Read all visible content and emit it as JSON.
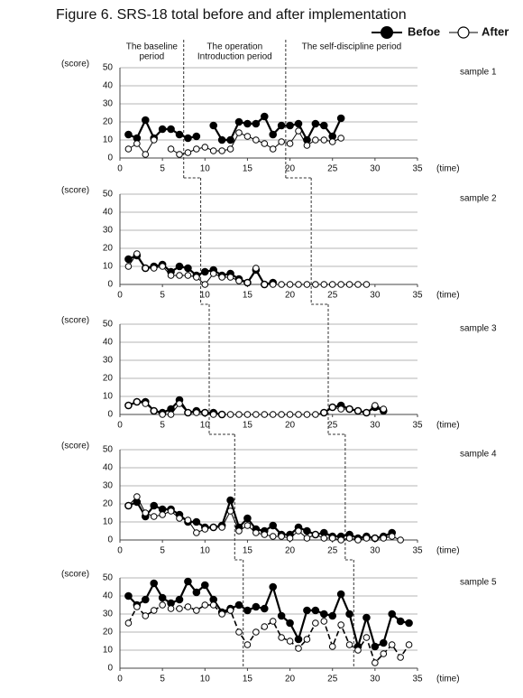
{
  "title": "Figure 6.    SRS-18 total before and after implementation",
  "legend": [
    "Befoe",
    "After"
  ],
  "chart_data": [
    {
      "type": "line",
      "label": "sample 1",
      "y_label": "(score)",
      "x_label": "(time)",
      "phase_labels": [
        [
          "The baseline",
          "period"
        ],
        [
          "The operation",
          "Introduction period"
        ],
        [
          "The self-discipline period"
        ]
      ],
      "phase_lines": [
        7.5,
        19.5
      ],
      "xlim": [
        0,
        35
      ],
      "ylim": [
        0,
        50
      ],
      "xticks": [
        0,
        5,
        10,
        15,
        20,
        25,
        30,
        35
      ],
      "yticks": [
        0,
        10,
        20,
        30,
        40,
        50
      ],
      "grid": true,
      "x": [
        1,
        2,
        3,
        4,
        5,
        6,
        7,
        8,
        9,
        10,
        11,
        12,
        13,
        14,
        15,
        16,
        17,
        18,
        19,
        20,
        21,
        22,
        23,
        24,
        25,
        26
      ],
      "series": [
        {
          "color": "#000000",
          "filled": true,
          "dashed": false,
          "values": [
            13,
            11,
            21,
            11,
            16,
            16,
            13,
            11,
            12,
            null,
            18,
            10,
            10,
            20,
            19,
            19,
            23,
            13,
            18,
            18,
            19,
            10,
            19,
            18,
            12,
            22
          ]
        },
        {
          "color": "#000000",
          "filled": false,
          "dashed": false,
          "values": [
            5,
            8,
            2,
            10,
            null,
            5,
            2,
            3,
            5,
            6,
            4,
            4,
            5,
            14,
            12,
            10,
            8,
            5,
            9,
            8,
            15,
            7,
            10,
            10,
            9,
            11
          ]
        }
      ]
    },
    {
      "type": "line",
      "label": "sample 2",
      "y_label": "(score)",
      "x_label": "(time)",
      "phase_lines": [
        9.5,
        22.5
      ],
      "xlim": [
        0,
        35
      ],
      "ylim": [
        0,
        50
      ],
      "xticks": [
        0,
        5,
        10,
        15,
        20,
        25,
        30,
        35
      ],
      "yticks": [
        0,
        10,
        20,
        30,
        40,
        50
      ],
      "grid": true,
      "x": [
        1,
        2,
        3,
        4,
        5,
        6,
        7,
        8,
        9,
        10,
        11,
        12,
        13,
        14,
        15,
        16,
        17,
        18,
        19,
        20,
        21,
        22,
        23,
        24,
        25,
        26,
        27,
        28,
        29
      ],
      "series": [
        {
          "color": "#000000",
          "filled": true,
          "dashed": false,
          "values": [
            14,
            16,
            9,
            10,
            11,
            7,
            10,
            9,
            5,
            7,
            8,
            5,
            6,
            3,
            1,
            8,
            0,
            1,
            null,
            null,
            null,
            null,
            null,
            null,
            null,
            null,
            null,
            null,
            null
          ]
        },
        {
          "color": "#000000",
          "filled": false,
          "dashed": false,
          "values": [
            10,
            17,
            9,
            9,
            10,
            5,
            5,
            5,
            4,
            0,
            6,
            4,
            4,
            2,
            1,
            9,
            0,
            0,
            0,
            0,
            0,
            0,
            0,
            0,
            0,
            0,
            0,
            0,
            0
          ]
        }
      ]
    },
    {
      "type": "line",
      "label": "sample 3",
      "y_label": "(score)",
      "x_label": "(time)",
      "phase_lines": [
        10.5,
        24.5
      ],
      "xlim": [
        0,
        35
      ],
      "ylim": [
        0,
        50
      ],
      "xticks": [
        0,
        5,
        10,
        15,
        20,
        25,
        30,
        35
      ],
      "yticks": [
        0,
        10,
        20,
        30,
        40,
        50
      ],
      "grid": true,
      "x": [
        1,
        2,
        3,
        4,
        5,
        6,
        7,
        8,
        9,
        10,
        11,
        12,
        13,
        14,
        15,
        16,
        17,
        18,
        19,
        20,
        21,
        22,
        23,
        24,
        25,
        26,
        27,
        28,
        29,
        30,
        31
      ],
      "series": [
        {
          "color": "#000000",
          "filled": true,
          "dashed": false,
          "values": [
            5,
            7,
            7,
            2,
            1,
            3,
            8,
            1,
            2,
            1,
            1,
            0,
            null,
            null,
            null,
            null,
            null,
            null,
            null,
            null,
            null,
            null,
            null,
            1,
            4,
            5,
            3,
            2,
            1,
            4,
            2
          ]
        },
        {
          "color": "#000000",
          "filled": false,
          "dashed": false,
          "values": [
            5,
            7,
            6,
            2,
            0,
            0,
            6,
            1,
            1,
            1,
            0,
            0,
            0,
            0,
            0,
            0,
            0,
            0,
            0,
            0,
            0,
            0,
            0,
            1,
            4,
            3,
            3,
            2,
            1,
            5,
            3
          ]
        }
      ]
    },
    {
      "type": "line",
      "label": "sample 4",
      "y_label": "(score)",
      "x_label": "(time)",
      "phase_lines": [
        13.5,
        26.5
      ],
      "xlim": [
        0,
        35
      ],
      "ylim": [
        0,
        50
      ],
      "xticks": [
        0,
        5,
        10,
        15,
        20,
        25,
        30,
        35
      ],
      "yticks": [
        0,
        10,
        20,
        30,
        40,
        50
      ],
      "grid": true,
      "x": [
        1,
        2,
        3,
        4,
        5,
        6,
        7,
        8,
        9,
        10,
        11,
        12,
        13,
        14,
        15,
        16,
        17,
        18,
        19,
        20,
        21,
        22,
        23,
        24,
        25,
        26,
        27,
        28,
        29,
        30,
        31,
        32,
        33
      ],
      "series": [
        {
          "color": "#000000",
          "filled": true,
          "dashed": false,
          "values": [
            19,
            21,
            13,
            19,
            17,
            17,
            14,
            10,
            10,
            7,
            7,
            8,
            22,
            7,
            12,
            6,
            5,
            8,
            3,
            3,
            7,
            5,
            3,
            4,
            2,
            2,
            3,
            1,
            2,
            1,
            2,
            4,
            null
          ]
        },
        {
          "color": "#000000",
          "filled": false,
          "dashed": false,
          "values": [
            19,
            24,
            15,
            13,
            14,
            16,
            12,
            11,
            4,
            6,
            7,
            7,
            16,
            5,
            8,
            4,
            3,
            2,
            2,
            1,
            5,
            1,
            3,
            1,
            1,
            0,
            1,
            0,
            1,
            1,
            1,
            2,
            0
          ]
        }
      ]
    },
    {
      "type": "line",
      "label": "sample 5",
      "y_label": "(score)",
      "x_label": "(time)",
      "phase_lines": [
        14.5,
        27.5
      ],
      "xlim": [
        0,
        35
      ],
      "ylim": [
        0,
        50
      ],
      "xticks": [
        0,
        5,
        10,
        15,
        20,
        25,
        30,
        35
      ],
      "yticks": [
        0,
        10,
        20,
        30,
        40,
        50
      ],
      "grid": true,
      "x": [
        1,
        2,
        3,
        4,
        5,
        6,
        7,
        8,
        9,
        10,
        11,
        12,
        13,
        14,
        15,
        16,
        17,
        18,
        19,
        20,
        21,
        22,
        23,
        24,
        25,
        26,
        27,
        28,
        29,
        30,
        31,
        32,
        33,
        34
      ],
      "series": [
        {
          "color": "#000000",
          "filled": true,
          "dashed": false,
          "values": [
            40,
            35,
            38,
            47,
            39,
            36,
            38,
            48,
            42,
            46,
            38,
            31,
            33,
            35,
            32,
            34,
            33,
            45,
            29,
            25,
            16,
            32,
            32,
            30,
            29,
            41,
            30,
            12,
            28,
            12,
            14,
            30,
            26,
            25
          ]
        },
        {
          "color": "#000000",
          "filled": false,
          "dashed": true,
          "values": [
            25,
            34,
            29,
            32,
            35,
            33,
            33,
            34,
            32,
            35,
            35,
            30,
            32,
            20,
            13,
            20,
            23,
            26,
            17,
            15,
            11,
            16,
            25,
            26,
            12,
            24,
            13,
            10,
            17,
            3,
            8,
            13,
            6,
            13
          ]
        }
      ]
    }
  ]
}
